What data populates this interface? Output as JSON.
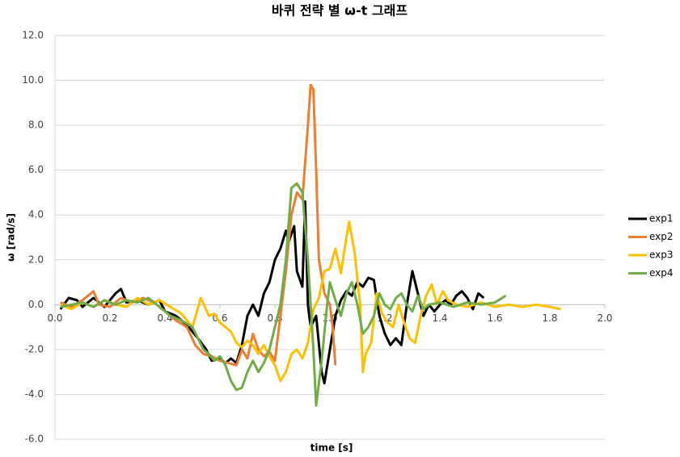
{
  "chart_data": {
    "type": "line",
    "title": "바퀴 전략 별 ω-t 그래프",
    "x_label": "time [s]",
    "y_label": "ω [rad/s]",
    "xlim": [
      0,
      2
    ],
    "ylim": [
      -6,
      12
    ],
    "xticks": [
      {
        "value": 0,
        "label": "0.0"
      },
      {
        "value": 0.2,
        "label": "0.2"
      },
      {
        "value": 0.4,
        "label": "0.4"
      },
      {
        "value": 0.6,
        "label": "0.6"
      },
      {
        "value": 0.8,
        "label": "0.8"
      },
      {
        "value": 1,
        "label": "1.0"
      },
      {
        "value": 1.2,
        "label": "1.2"
      },
      {
        "value": 1.4,
        "label": "1.4"
      },
      {
        "value": 1.6,
        "label": "1.6"
      },
      {
        "value": 1.8,
        "label": "1.8"
      },
      {
        "value": 2,
        "label": "2.0"
      }
    ],
    "yticks": [
      {
        "value": -6,
        "label": "-6.0"
      },
      {
        "value": -4,
        "label": "-4.0"
      },
      {
        "value": -2,
        "label": "-2.0"
      },
      {
        "value": 0,
        "label": "0.0"
      },
      {
        "value": 2,
        "label": "2.0"
      },
      {
        "value": 4,
        "label": "4.0"
      },
      {
        "value": 6,
        "label": "6.0"
      },
      {
        "value": 8,
        "label": "8.0"
      },
      {
        "value": 10,
        "label": "10.0"
      },
      {
        "value": 12,
        "label": "12.0"
      }
    ],
    "grid": true,
    "legend": "right",
    "series": [
      {
        "name": "exp1",
        "color": "#000000",
        "x": [
          0.02,
          0.05,
          0.08,
          0.1,
          0.14,
          0.18,
          0.22,
          0.24,
          0.26,
          0.3,
          0.34,
          0.38,
          0.4,
          0.44,
          0.48,
          0.52,
          0.55,
          0.57,
          0.6,
          0.62,
          0.64,
          0.66,
          0.68,
          0.7,
          0.72,
          0.74,
          0.76,
          0.78,
          0.8,
          0.82,
          0.84,
          0.85,
          0.87,
          0.88,
          0.9,
          0.91,
          0.92,
          0.93,
          0.95,
          0.97,
          0.98,
          1.0,
          1.02,
          1.04,
          1.06,
          1.08,
          1.1,
          1.12,
          1.14,
          1.16,
          1.18,
          1.2,
          1.22,
          1.24,
          1.26,
          1.28,
          1.3,
          1.32,
          1.34,
          1.36,
          1.38,
          1.4,
          1.42,
          1.44,
          1.46,
          1.48,
          1.5,
          1.52,
          1.54,
          1.56
        ],
        "values": [
          -0.2,
          0.3,
          0.2,
          -0.1,
          0.3,
          -0.1,
          0.5,
          0.7,
          0.1,
          0.2,
          0.0,
          0.2,
          -0.3,
          -0.5,
          -0.9,
          -1.5,
          -2.0,
          -2.5,
          -2.4,
          -2.6,
          -2.4,
          -2.6,
          -1.8,
          -0.5,
          0.0,
          -0.5,
          0.5,
          1.0,
          2.0,
          2.5,
          3.3,
          2.8,
          3.5,
          1.5,
          0.8,
          4.6,
          0.0,
          -1.0,
          -0.5,
          -3.0,
          -3.5,
          -2.0,
          -0.5,
          0.2,
          0.6,
          0.4,
          1.0,
          0.8,
          1.2,
          1.1,
          -0.5,
          -1.3,
          -1.8,
          -1.5,
          -1.8,
          0.0,
          1.5,
          0.5,
          -0.5,
          0.0,
          -0.3,
          0.0,
          0.2,
          0.0,
          0.4,
          0.6,
          0.3,
          -0.2,
          0.5,
          0.3
        ]
      },
      {
        "name": "exp2",
        "color": "#ed7d31",
        "x": [
          0.02,
          0.06,
          0.1,
          0.14,
          0.16,
          0.2,
          0.24,
          0.28,
          0.32,
          0.36,
          0.4,
          0.44,
          0.48,
          0.51,
          0.54,
          0.57,
          0.6,
          0.63,
          0.66,
          0.68,
          0.7,
          0.72,
          0.74,
          0.76,
          0.78,
          0.8,
          0.82,
          0.84,
          0.86,
          0.88,
          0.9,
          0.92,
          0.93,
          0.94,
          0.95,
          0.96,
          0.98,
          1.0,
          1.01,
          1.02
        ],
        "values": [
          0.1,
          -0.1,
          0.2,
          0.6,
          0.0,
          -0.1,
          0.3,
          0.1,
          0.3,
          0.1,
          -0.3,
          -0.7,
          -1.0,
          -1.8,
          -2.2,
          -2.3,
          -2.5,
          -2.6,
          -2.7,
          -2.0,
          -2.4,
          -1.3,
          -2.0,
          -2.3,
          -2.1,
          -2.5,
          -0.5,
          1.5,
          4.0,
          5.0,
          4.7,
          8.0,
          9.8,
          9.6,
          6.0,
          2.0,
          0.5,
          0.0,
          -1.0,
          -2.7
        ]
      },
      {
        "name": "exp3",
        "color": "#ffc000",
        "x": [
          0.02,
          0.06,
          0.1,
          0.14,
          0.18,
          0.22,
          0.26,
          0.3,
          0.34,
          0.38,
          0.42,
          0.46,
          0.5,
          0.53,
          0.56,
          0.58,
          0.6,
          0.62,
          0.64,
          0.66,
          0.68,
          0.7,
          0.72,
          0.74,
          0.76,
          0.78,
          0.8,
          0.82,
          0.84,
          0.86,
          0.88,
          0.9,
          0.92,
          0.94,
          0.96,
          0.98,
          1.0,
          1.02,
          1.04,
          1.06,
          1.07,
          1.09,
          1.11,
          1.12,
          1.13,
          1.15,
          1.17,
          1.19,
          1.21,
          1.23,
          1.25,
          1.27,
          1.29,
          1.31,
          1.33,
          1.35,
          1.37,
          1.39,
          1.41,
          1.43,
          1.46,
          1.5,
          1.55,
          1.6,
          1.65,
          1.7,
          1.75,
          1.8,
          1.84
        ],
        "values": [
          0.0,
          -0.2,
          0.1,
          -0.1,
          0.2,
          0.0,
          -0.1,
          0.3,
          0.0,
          0.2,
          -0.1,
          -0.4,
          -1.0,
          0.3,
          -0.5,
          -0.4,
          -0.8,
          -1.0,
          -1.2,
          -1.7,
          -1.9,
          -1.6,
          -1.8,
          -2.2,
          -1.8,
          -2.3,
          -2.7,
          -3.4,
          -3.0,
          -2.2,
          -2.0,
          -2.4,
          -1.7,
          -0.2,
          0.3,
          1.5,
          1.6,
          2.5,
          1.4,
          3.0,
          3.7,
          2.3,
          0.0,
          -3.0,
          -2.2,
          -1.7,
          0.5,
          -0.4,
          -0.8,
          -1.0,
          0.0,
          -0.8,
          -1.5,
          -1.7,
          -0.5,
          0.4,
          0.9,
          0.0,
          0.6,
          0.2,
          0.0,
          -0.1,
          0.1,
          -0.1,
          0.0,
          -0.1,
          0.0,
          -0.1,
          -0.2
        ]
      },
      {
        "name": "exp4",
        "color": "#70ad47",
        "x": [
          0.02,
          0.06,
          0.1,
          0.14,
          0.18,
          0.22,
          0.26,
          0.3,
          0.34,
          0.38,
          0.42,
          0.46,
          0.5,
          0.52,
          0.54,
          0.56,
          0.58,
          0.6,
          0.62,
          0.64,
          0.66,
          0.68,
          0.7,
          0.72,
          0.74,
          0.76,
          0.78,
          0.8,
          0.82,
          0.84,
          0.86,
          0.88,
          0.9,
          0.92,
          0.94,
          0.95,
          0.97,
          0.99,
          1.0,
          1.02,
          1.04,
          1.06,
          1.08,
          1.1,
          1.12,
          1.14,
          1.16,
          1.18,
          1.2,
          1.22,
          1.24,
          1.26,
          1.28,
          1.3,
          1.32,
          1.34,
          1.36,
          1.4,
          1.45,
          1.5,
          1.55,
          1.6,
          1.64
        ],
        "values": [
          -0.1,
          0.0,
          0.1,
          -0.1,
          0.2,
          0.0,
          0.2,
          0.1,
          0.3,
          -0.1,
          -0.5,
          -0.7,
          -1.0,
          -1.5,
          -2.0,
          -2.2,
          -2.5,
          -2.3,
          -2.7,
          -3.4,
          -3.8,
          -3.7,
          -3.0,
          -2.5,
          -3.0,
          -2.6,
          -2.0,
          -1.0,
          0.0,
          2.0,
          5.2,
          5.4,
          5.0,
          2.0,
          -2.0,
          -4.5,
          -2.5,
          0.0,
          1.0,
          0.2,
          -0.5,
          0.5,
          1.0,
          0.0,
          -1.3,
          -1.0,
          -0.5,
          0.5,
          0.0,
          -0.2,
          0.3,
          0.5,
          0.0,
          -0.3,
          0.4,
          -0.2,
          0.0,
          0.1,
          -0.1,
          0.1,
          0.0,
          0.1,
          0.4
        ]
      }
    ]
  }
}
